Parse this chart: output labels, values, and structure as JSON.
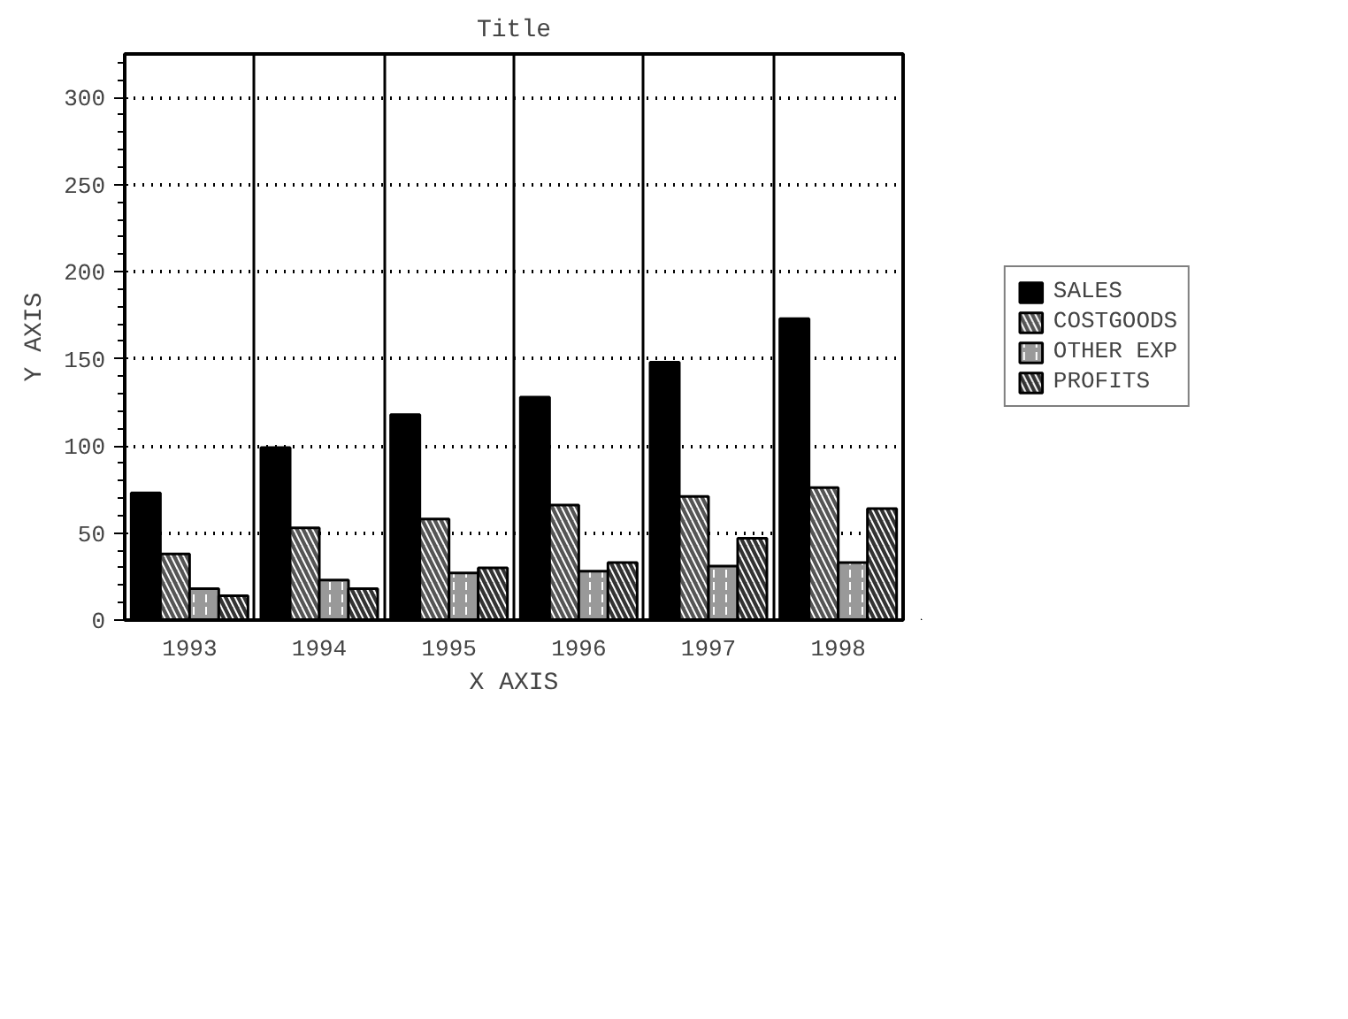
{
  "chart_data": {
    "type": "bar",
    "title": "Title",
    "xlabel": "X AXIS",
    "ylabel": "Y AXIS",
    "categories": [
      "1993",
      "1994",
      "1995",
      "1996",
      "1997",
      "1998"
    ],
    "series": [
      {
        "name": "SALES",
        "color": "#000000",
        "values": [
          73,
          99,
          118,
          128,
          148,
          173
        ]
      },
      {
        "name": "COSTGOODS",
        "color": "#555555",
        "values": [
          38,
          53,
          58,
          66,
          71,
          76
        ]
      },
      {
        "name": "OTHER EXP",
        "color": "#999999",
        "values": [
          18,
          23,
          27,
          28,
          31,
          33
        ]
      },
      {
        "name": "PROFITS",
        "color": "#333333",
        "values": [
          14,
          18,
          30,
          33,
          47,
          64
        ]
      }
    ],
    "ylim": [
      0,
      325
    ],
    "yticks": [
      0,
      50,
      100,
      150,
      200,
      250,
      300
    ],
    "grid": true,
    "legend": "right"
  }
}
